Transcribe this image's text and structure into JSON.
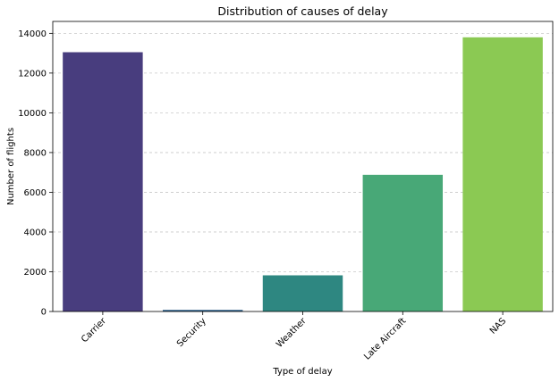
{
  "chart_data": {
    "type": "bar",
    "title": "Distribution of causes of delay",
    "xlabel": "Type of delay",
    "ylabel": "Number of flights",
    "categories": [
      "Carrier",
      "Security",
      "Weather",
      "Late Aircraft",
      "NAS"
    ],
    "values": [
      13050,
      80,
      1820,
      6880,
      13800
    ],
    "colors": [
      "#483d7e",
      "#2c5f8a",
      "#2e8781",
      "#48a877",
      "#8bc953"
    ],
    "ylim": [
      0,
      14600
    ],
    "yticks": [
      0,
      2000,
      4000,
      6000,
      8000,
      10000,
      12000,
      14000
    ],
    "ytick_labels": [
      "0",
      "2000",
      "4000",
      "6000",
      "8000",
      "10000",
      "12000",
      "14000"
    ],
    "grid": "y-dashed",
    "legend": "none",
    "x_tick_rotation": 45
  }
}
